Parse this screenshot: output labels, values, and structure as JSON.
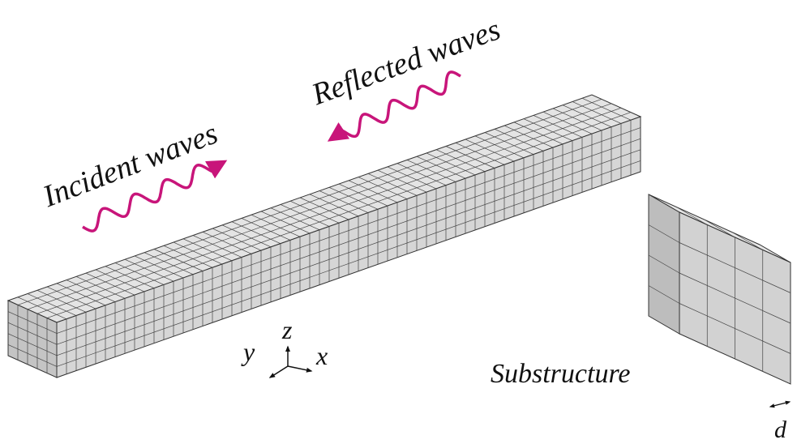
{
  "labels": {
    "incident": "Incident waves",
    "reflected": "Reflected waves",
    "substructure": "Substructure",
    "axis_y": "y",
    "axis_z": "z",
    "axis_x": "x",
    "dimension": "d"
  }
}
